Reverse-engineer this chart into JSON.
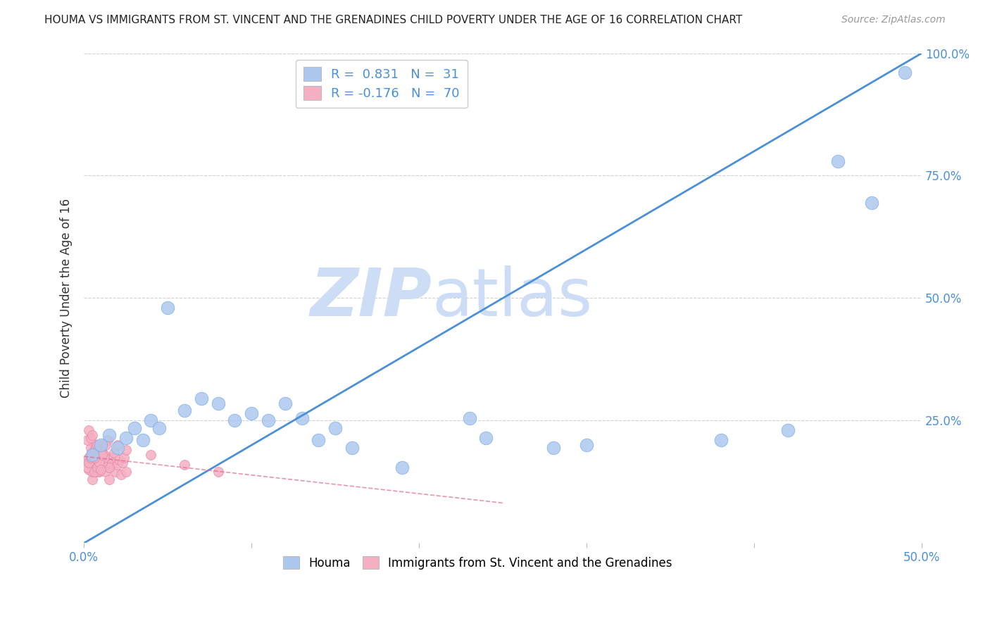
{
  "title": "HOUMA VS IMMIGRANTS FROM ST. VINCENT AND THE GRENADINES CHILD POVERTY UNDER THE AGE OF 16 CORRELATION CHART",
  "source": "Source: ZipAtlas.com",
  "ylabel": "Child Poverty Under the Age of 16",
  "xlim": [
    0.0,
    0.5
  ],
  "ylim": [
    0.0,
    1.0
  ],
  "houma_R": 0.831,
  "houma_N": 31,
  "svg_R": -0.176,
  "svg_N": 70,
  "houma_color": "#adc8ee",
  "svg_color": "#f5afc2",
  "houma_edge_color": "#7aaee8",
  "svg_edge_color": "#e888a8",
  "houma_line_color": "#4a90d9",
  "svg_line_color": "#e06888",
  "watermark_zip_color": "#ccddf5",
  "watermark_atlas_color": "#ccddf5",
  "axis_tick_color": "#4a90d9",
  "grid_color": "#d0d0d0",
  "title_color": "#222222",
  "source_color": "#999999",
  "houma_x": [
    0.005,
    0.01,
    0.015,
    0.02,
    0.025,
    0.03,
    0.035,
    0.04,
    0.045,
    0.05,
    0.06,
    0.07,
    0.08,
    0.09,
    0.1,
    0.11,
    0.12,
    0.13,
    0.14,
    0.15,
    0.16,
    0.19,
    0.23,
    0.24,
    0.28,
    0.3,
    0.38,
    0.42,
    0.45,
    0.47,
    0.49
  ],
  "houma_y": [
    0.18,
    0.2,
    0.22,
    0.195,
    0.215,
    0.235,
    0.21,
    0.25,
    0.235,
    0.48,
    0.27,
    0.295,
    0.285,
    0.25,
    0.265,
    0.25,
    0.285,
    0.255,
    0.21,
    0.235,
    0.195,
    0.155,
    0.255,
    0.215,
    0.195,
    0.2,
    0.21,
    0.23,
    0.78,
    0.695,
    0.96
  ],
  "svg_x": [
    0.002,
    0.003,
    0.004,
    0.005,
    0.005,
    0.005,
    0.006,
    0.007,
    0.008,
    0.009,
    0.01,
    0.01,
    0.011,
    0.012,
    0.013,
    0.014,
    0.015,
    0.015,
    0.016,
    0.017,
    0.018,
    0.019,
    0.02,
    0.02,
    0.021,
    0.022,
    0.023,
    0.024,
    0.025,
    0.025,
    0.006,
    0.007,
    0.008,
    0.009,
    0.01,
    0.011,
    0.012,
    0.013,
    0.014,
    0.015,
    0.003,
    0.004,
    0.005,
    0.006,
    0.007,
    0.008,
    0.009,
    0.01,
    0.011,
    0.012,
    0.002,
    0.003,
    0.004,
    0.005,
    0.006,
    0.007,
    0.008,
    0.009,
    0.01,
    0.011,
    0.002,
    0.003,
    0.004,
    0.005,
    0.006,
    0.007,
    0.008,
    0.04,
    0.06,
    0.08
  ],
  "svg_y": [
    0.165,
    0.15,
    0.18,
    0.13,
    0.145,
    0.17,
    0.2,
    0.185,
    0.155,
    0.145,
    0.165,
    0.2,
    0.185,
    0.17,
    0.145,
    0.21,
    0.13,
    0.155,
    0.175,
    0.165,
    0.185,
    0.145,
    0.2,
    0.16,
    0.17,
    0.14,
    0.165,
    0.175,
    0.19,
    0.145,
    0.185,
    0.165,
    0.175,
    0.155,
    0.19,
    0.17,
    0.18,
    0.2,
    0.165,
    0.155,
    0.175,
    0.195,
    0.185,
    0.16,
    0.17,
    0.145,
    0.185,
    0.17,
    0.165,
    0.175,
    0.155,
    0.165,
    0.175,
    0.18,
    0.145,
    0.19,
    0.155,
    0.165,
    0.15,
    0.18,
    0.21,
    0.23,
    0.215,
    0.22,
    0.175,
    0.195,
    0.2,
    0.18,
    0.16,
    0.145
  ]
}
